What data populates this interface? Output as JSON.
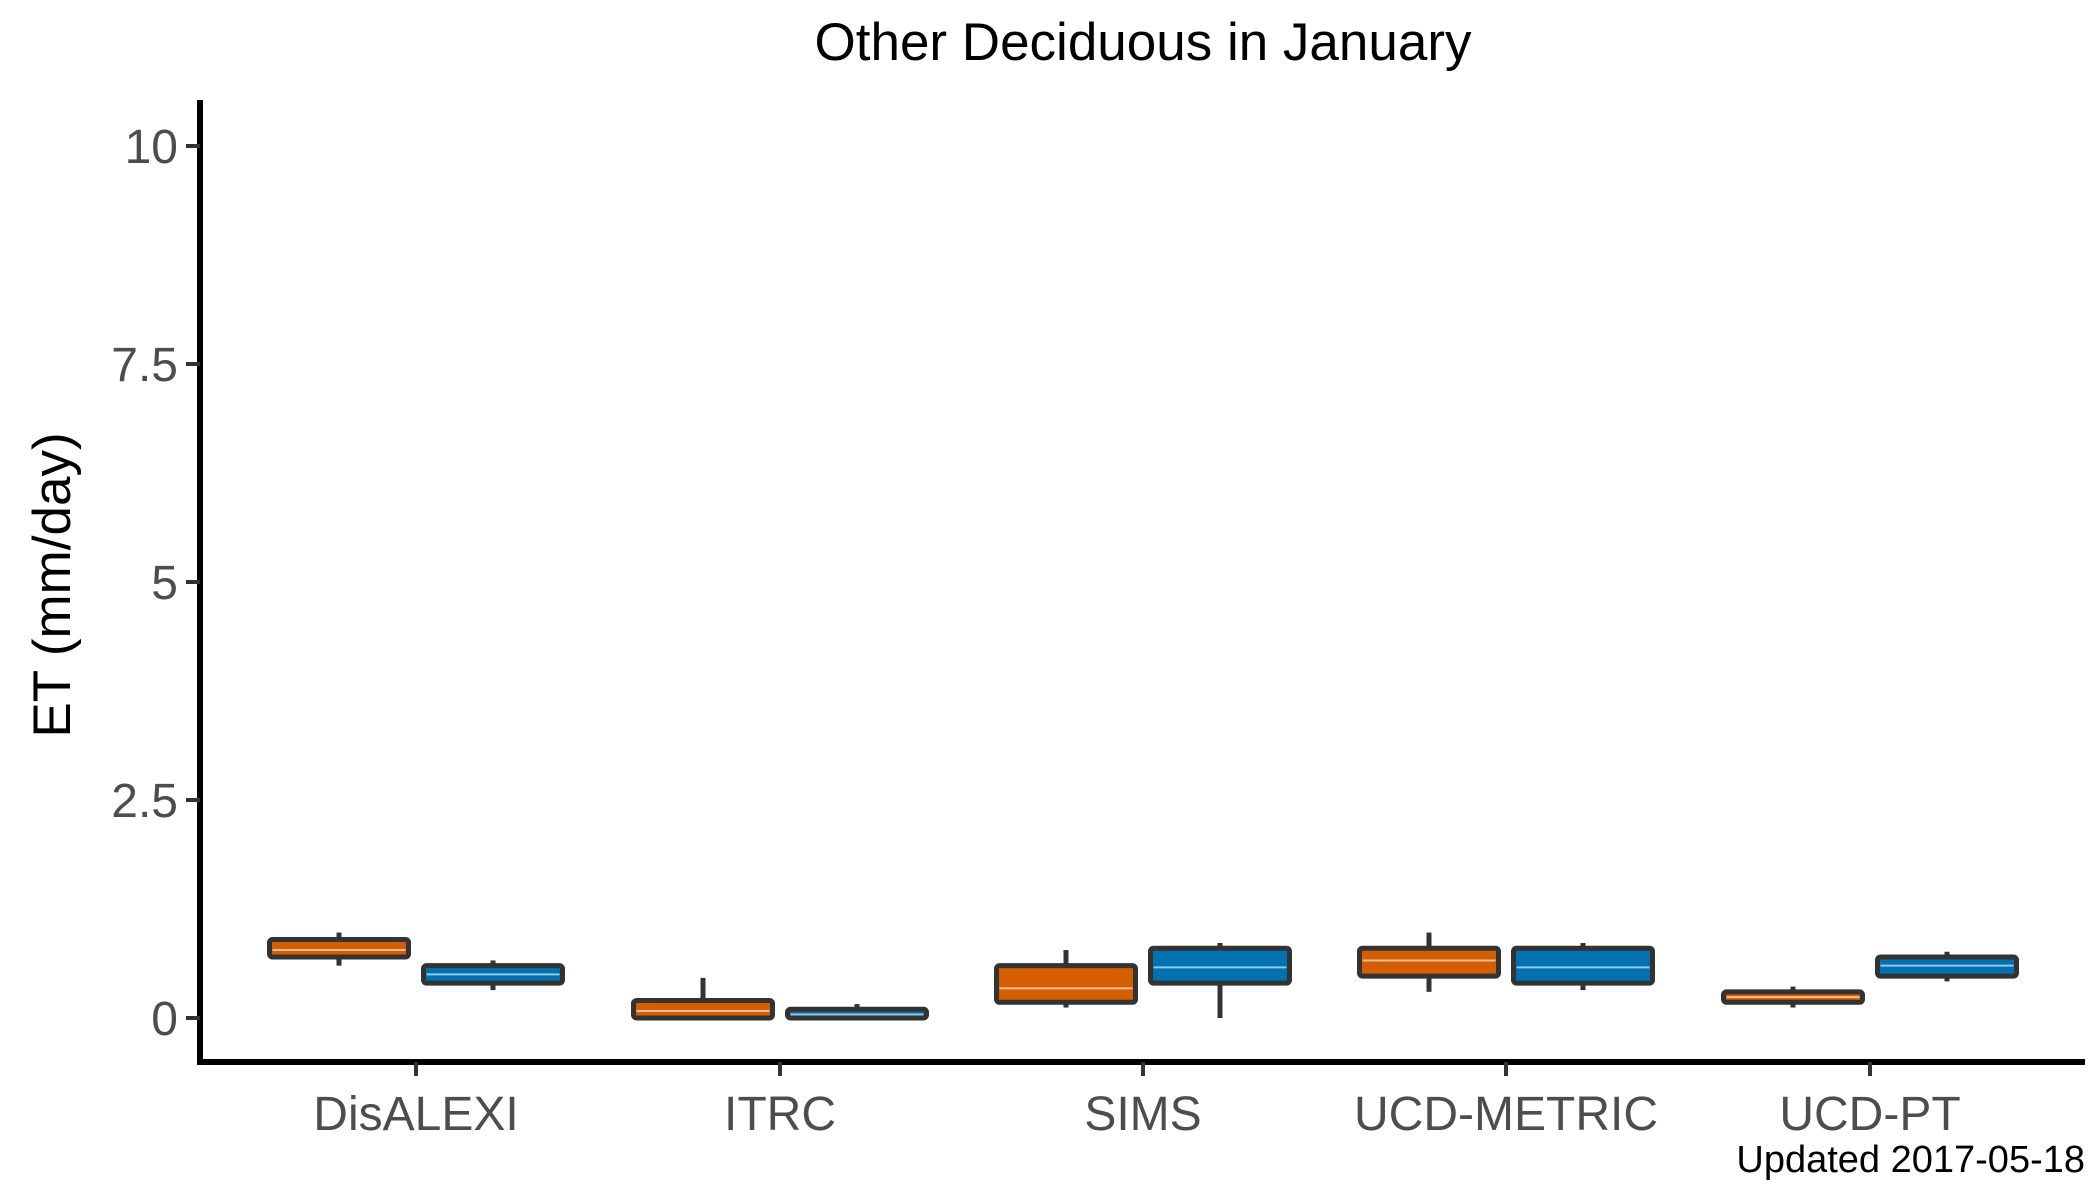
{
  "footer_note": "Updated  2017-05-18",
  "chart_data": {
    "type": "boxplot",
    "title": "Other Deciduous in January",
    "xlabel": "",
    "ylabel": "ET (mm/day)",
    "ylim": [
      -0.5,
      10.5
    ],
    "yticks": [
      0,
      2.5,
      5,
      7.5,
      10
    ],
    "ytick_labels": [
      "0",
      "2.5",
      "5",
      "7.5",
      "10"
    ],
    "grid": false,
    "legend": "none",
    "categories": [
      "DisALEXI",
      "ITRC",
      "SIMS",
      "UCD-METRIC",
      "UCD-PT"
    ],
    "series": [
      {
        "color": "#D55E00",
        "boxes": [
          {
            "min": 0.6,
            "q1": 0.7,
            "median": 0.78,
            "q3": 0.9,
            "max": 0.98
          },
          {
            "min": 0.0,
            "q1": 0.0,
            "median": 0.08,
            "q3": 0.2,
            "max": 0.46
          },
          {
            "min": 0.12,
            "q1": 0.18,
            "median": 0.34,
            "q3": 0.6,
            "max": 0.78
          },
          {
            "min": 0.3,
            "q1": 0.48,
            "median": 0.66,
            "q3": 0.8,
            "max": 0.98
          },
          {
            "min": 0.12,
            "q1": 0.18,
            "median": 0.24,
            "q3": 0.3,
            "max": 0.36
          }
        ]
      },
      {
        "color": "#0072B2",
        "boxes": [
          {
            "min": 0.32,
            "q1": 0.4,
            "median": 0.5,
            "q3": 0.6,
            "max": 0.66
          },
          {
            "min": -0.02,
            "q1": 0.0,
            "median": 0.04,
            "q3": 0.1,
            "max": 0.16
          },
          {
            "min": 0.0,
            "q1": 0.4,
            "median": 0.58,
            "q3": 0.8,
            "max": 0.86
          },
          {
            "min": 0.32,
            "q1": 0.4,
            "median": 0.58,
            "q3": 0.8,
            "max": 0.86
          },
          {
            "min": 0.42,
            "q1": 0.48,
            "median": 0.6,
            "q3": 0.7,
            "max": 0.76
          }
        ]
      }
    ]
  }
}
